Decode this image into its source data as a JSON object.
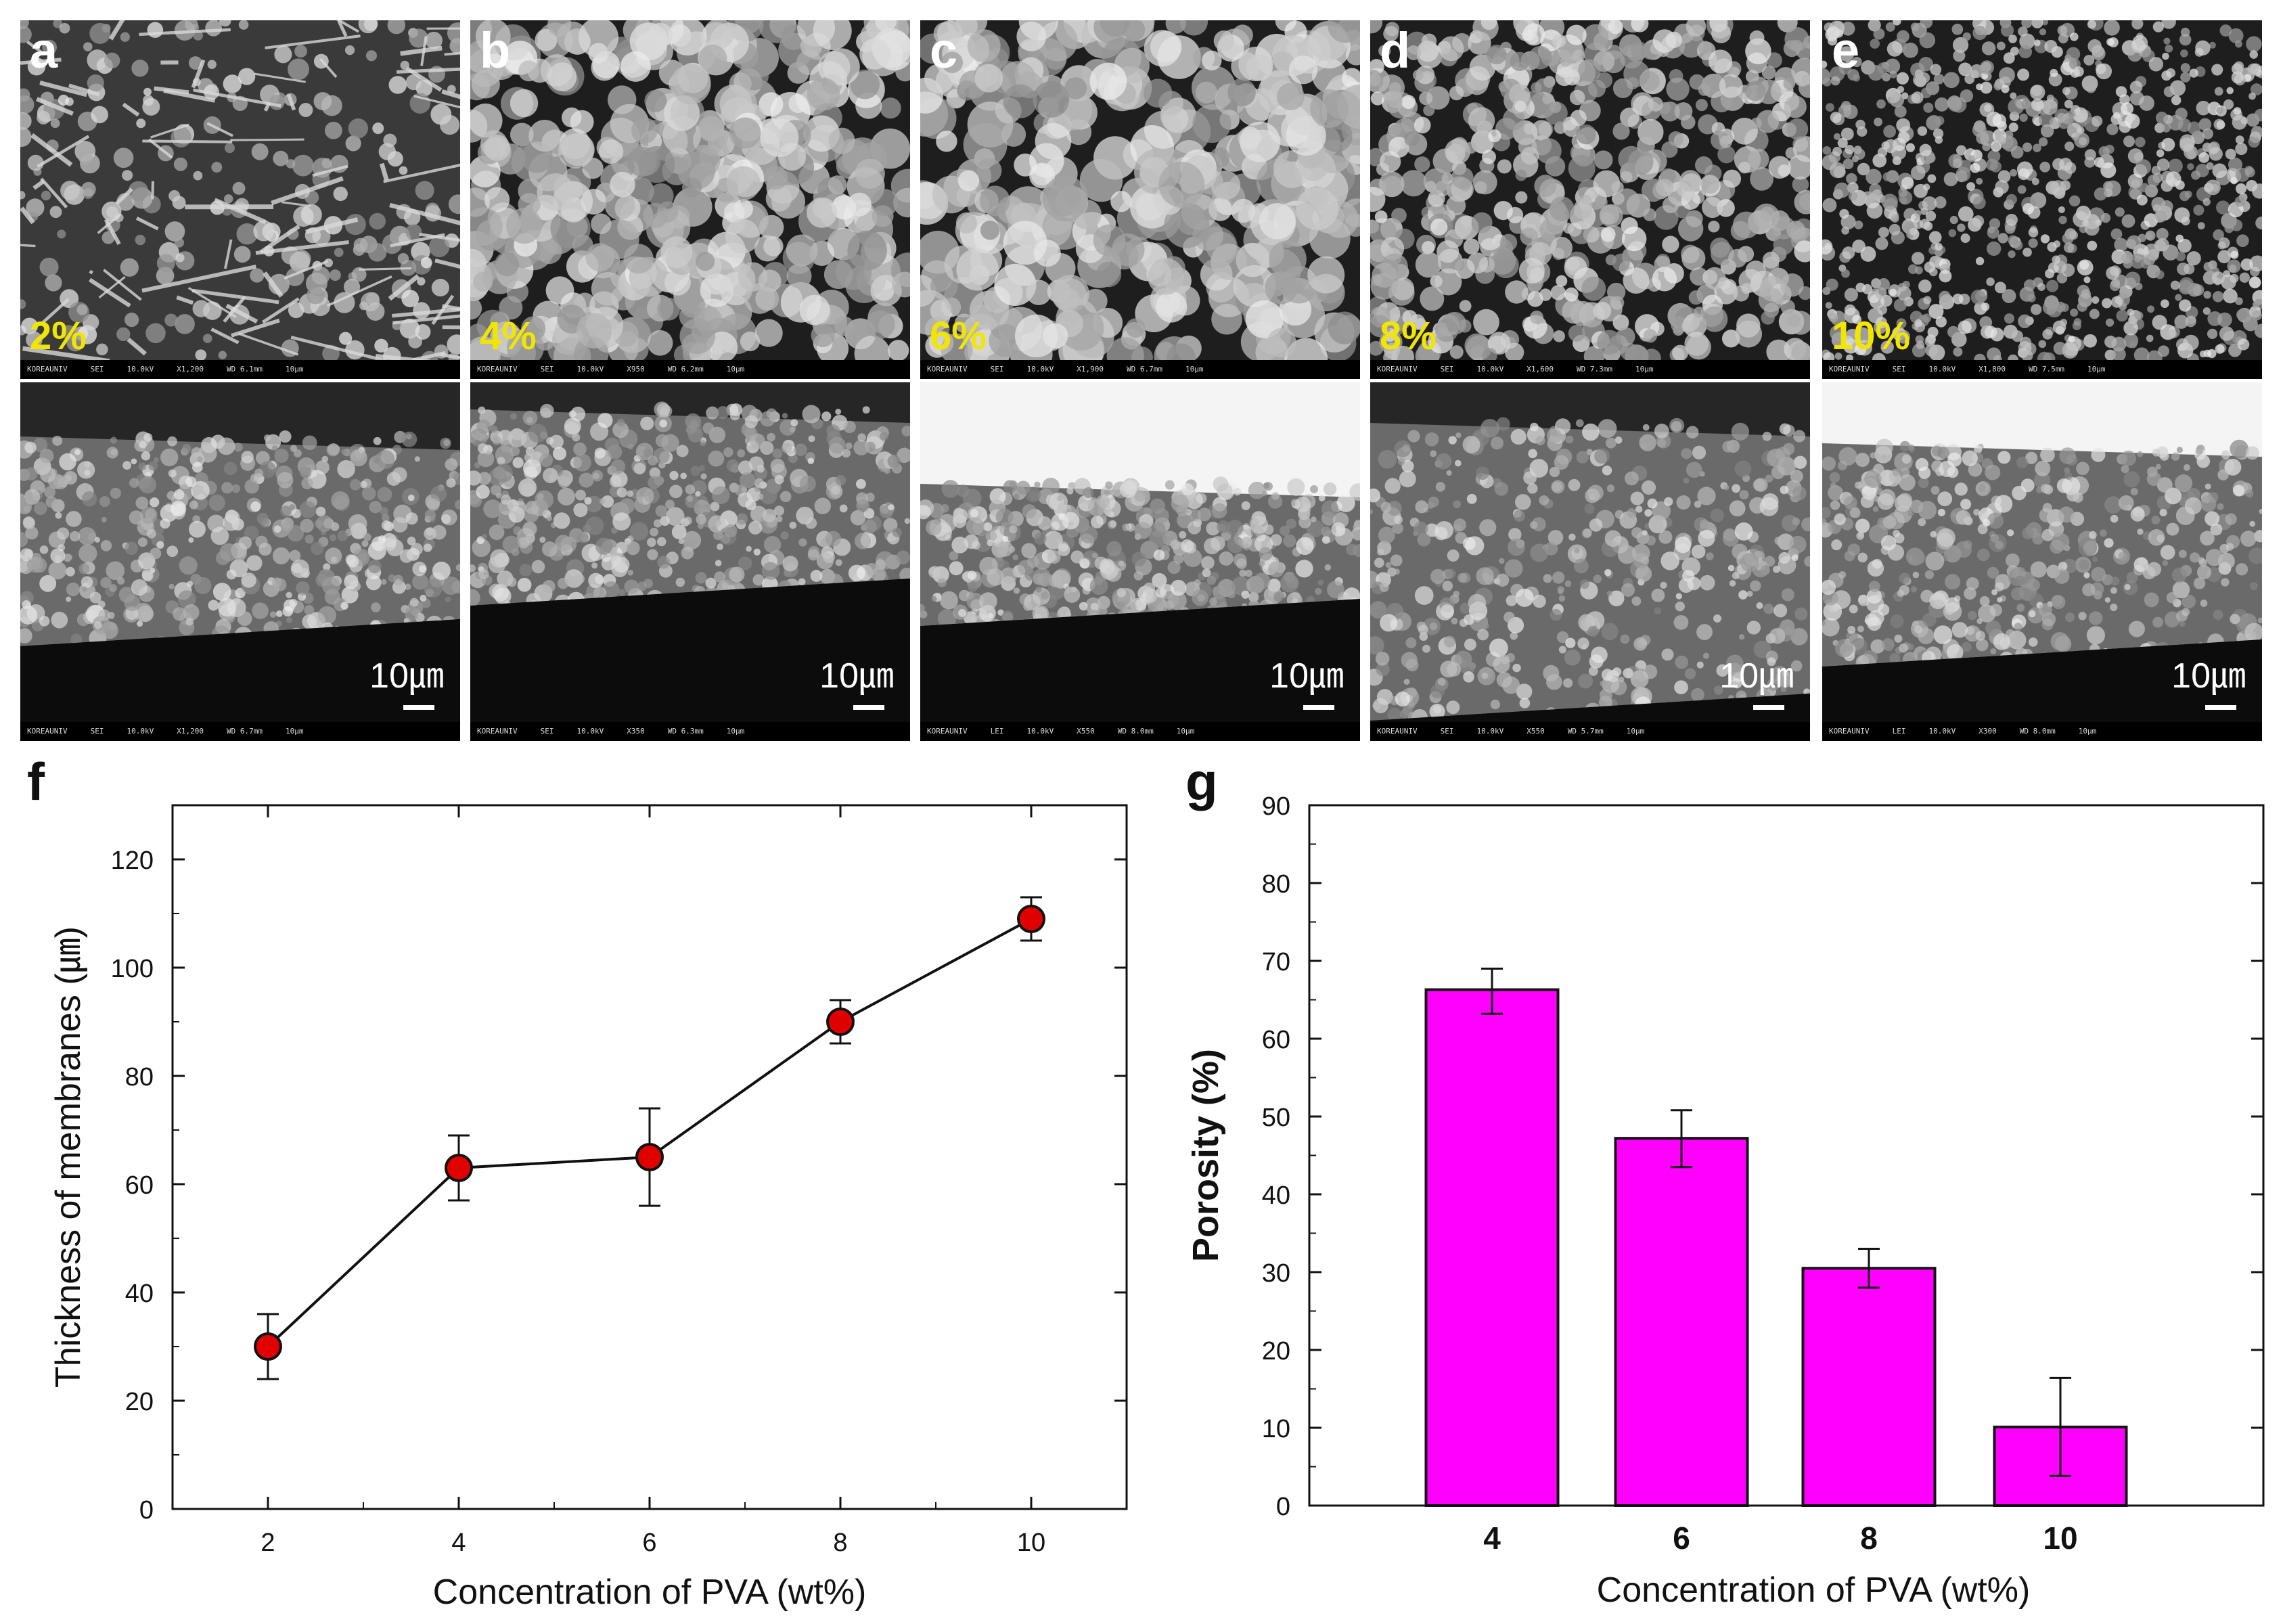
{
  "sem_panels": [
    {
      "letter": "a",
      "concentration": "2%",
      "top_databar": [
        "KOREAUNIV",
        "SEI",
        "10.0kV",
        "X1,200",
        "WD 6.1mm",
        "10μm"
      ],
      "bottom_databar": [
        "KOREAUNIV",
        "SEI",
        "10.0kV",
        "X1,200",
        "WD 6.7mm",
        "10μm"
      ],
      "scale_label": "10㎛"
    },
    {
      "letter": "b",
      "concentration": "4%",
      "top_databar": [
        "KOREAUNIV",
        "SEI",
        "10.0kV",
        "X950",
        "WD 6.2mm",
        "10μm"
      ],
      "bottom_databar": [
        "KOREAUNIV",
        "SEI",
        "10.0kV",
        "X350",
        "WD 6.3mm",
        "10μm"
      ],
      "scale_label": "10㎛"
    },
    {
      "letter": "c",
      "concentration": "6%",
      "top_databar": [
        "KOREAUNIV",
        "SEI",
        "10.0kV",
        "X1,900",
        "WD 6.7mm",
        "10μm"
      ],
      "bottom_databar": [
        "KOREAUNIV",
        "LEI",
        "10.0kV",
        "X550",
        "WD 8.0mm",
        "10μm"
      ],
      "scale_label": "10㎛"
    },
    {
      "letter": "d",
      "concentration": "8%",
      "top_databar": [
        "KOREAUNIV",
        "SEI",
        "10.0kV",
        "X1,600",
        "WD 7.3mm",
        "10μm"
      ],
      "bottom_databar": [
        "KOREAUNIV",
        "SEI",
        "10.0kV",
        "X550",
        "WD 5.7mm",
        "10μm"
      ],
      "scale_label": "10㎛"
    },
    {
      "letter": "e",
      "concentration": "10%",
      "top_databar": [
        "KOREAUNIV",
        "SEI",
        "10.0kV",
        "X1,800",
        "WD 7.5mm",
        "10μm"
      ],
      "bottom_databar": [
        "KOREAUNIV",
        "LEI",
        "10.0kV",
        "X300",
        "WD 8.0mm",
        "10μm"
      ],
      "scale_label": "10㎛"
    }
  ],
  "colors": {
    "marker": "#e00000",
    "bar": "#ff00ff",
    "label_yellow": "#f2e600"
  },
  "chart_data": [
    {
      "panel": "f",
      "type": "line",
      "title": "",
      "xlabel": "Concentration of PVA (wt%)",
      "ylabel": "Thickness of membranes (㎛)",
      "xlim": [
        1,
        11
      ],
      "ylim": [
        0,
        130
      ],
      "x_ticks": [
        2,
        4,
        6,
        8,
        10
      ],
      "y_ticks": [
        0,
        20,
        40,
        60,
        80,
        100,
        120
      ],
      "series": [
        {
          "x": [
            2,
            4,
            6,
            8,
            10
          ],
          "y": [
            30,
            63,
            65,
            90,
            109
          ],
          "err_lower": [
            24,
            57,
            56,
            86,
            105
          ],
          "err_upper": [
            36,
            69,
            74,
            94,
            113
          ]
        }
      ],
      "grid": false
    },
    {
      "panel": "g",
      "type": "bar",
      "title": "",
      "xlabel": "Concentration of PVA (wt%)",
      "ylabel": "Porosity (%)",
      "categories": [
        "4",
        "6",
        "8",
        "10"
      ],
      "values": [
        66.3,
        47.2,
        30.5,
        10.1
      ],
      "err_lower": [
        63.2,
        43.5,
        28.0,
        3.8
      ],
      "err_upper": [
        69.0,
        50.8,
        33.0,
        16.4
      ],
      "ylim": [
        0,
        90
      ],
      "y_ticks": [
        0,
        10,
        20,
        30,
        40,
        50,
        60,
        70,
        80,
        90
      ],
      "grid": false
    }
  ]
}
